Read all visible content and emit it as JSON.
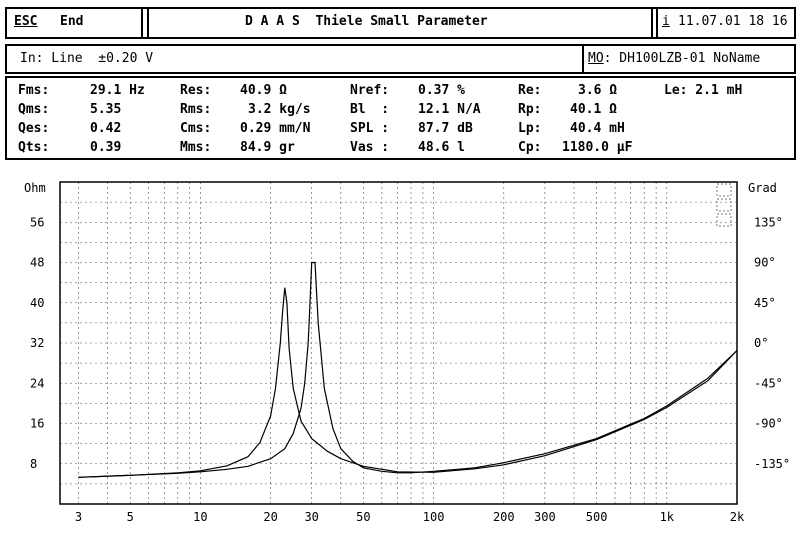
{
  "header": {
    "esc_label": "ESC",
    "end_label": "End",
    "title": "D A A S  Thiele Small Parameter",
    "info_label": "i",
    "datetime": "11.07.01 18 16"
  },
  "input_bar": {
    "input_text": "In: Line  ±0.20 V",
    "model_key": "MO",
    "model_value": ": DH100LZB-01 NoName"
  },
  "params": [
    [
      "Fms:",
      "29.1 Hz",
      "Res:",
      "40.9 Ω",
      "Nref:",
      "0.37 %",
      "Re:",
      "3.6 Ω",
      "Le: 2.1 mH"
    ],
    [
      "Qms:",
      "5.35",
      "Rms:",
      "3.2 kg/s",
      "Bl  :",
      "12.1 N/A",
      "Rp:",
      "40.1 Ω",
      ""
    ],
    [
      "Qes:",
      "0.42",
      "Cms:",
      "0.29 mm/N",
      "SPL :",
      "87.7 dB",
      "Lp:",
      "40.4 mH",
      ""
    ],
    [
      "Qts:",
      "0.39",
      "Mms:",
      "84.9 gr",
      "Vas :",
      "48.6 l",
      "Cp:",
      "1180.0 µF",
      ""
    ]
  ],
  "chart_data": {
    "type": "line",
    "x_scale": "log",
    "xlim": [
      2.5,
      2000
    ],
    "x_ticks": [
      "3",
      "5",
      "10",
      "20",
      "30",
      "50",
      "100",
      "200",
      "300",
      "500",
      "1k",
      "2k"
    ],
    "y_left_label": "Ohm",
    "ylim_left": [
      0,
      64
    ],
    "y_left_ticks": [
      "56",
      "48",
      "40",
      "32",
      "24",
      "16",
      "8"
    ],
    "y_right_label": "Grad",
    "ylim_right": [
      -180,
      180
    ],
    "y_right_ticks": [
      "135°",
      "90°",
      "45°",
      "0°",
      "-45°",
      "-90°",
      "-135°"
    ],
    "grid": true,
    "series": [
      {
        "x": [
          3,
          5,
          8,
          10,
          13,
          16,
          18,
          20,
          21,
          22,
          22.5,
          23,
          23.5,
          24,
          25,
          27,
          30,
          35,
          40,
          50,
          70,
          100,
          150,
          200,
          300,
          500,
          800,
          1000,
          1500,
          2000
        ],
        "y": [
          5.3,
          5.7,
          6.2,
          6.6,
          7.6,
          9.4,
          12.2,
          17.5,
          23,
          32,
          38,
          43,
          40,
          31,
          23,
          16.5,
          13,
          10.5,
          9,
          7.5,
          6.4,
          6.3,
          7,
          7.8,
          9.6,
          12.8,
          16.8,
          19.2,
          24.5,
          30.5
        ]
      },
      {
        "x": [
          3,
          5,
          8,
          10,
          13,
          16,
          20,
          23,
          25,
          27,
          28,
          29,
          29.5,
          30,
          31,
          32,
          34,
          37,
          40,
          45,
          50,
          60,
          70,
          80,
          100,
          150,
          200,
          300,
          500,
          800,
          1000,
          1500,
          2000
        ],
        "y": [
          5.3,
          5.7,
          6.1,
          6.4,
          6.9,
          7.5,
          9,
          11,
          14,
          19,
          24,
          32,
          40,
          48,
          48,
          36,
          23,
          15,
          11,
          8.5,
          7.2,
          6.5,
          6.2,
          6.2,
          6.5,
          7.2,
          8.2,
          10,
          13,
          17,
          19.5,
          25,
          30.5
        ]
      }
    ]
  }
}
